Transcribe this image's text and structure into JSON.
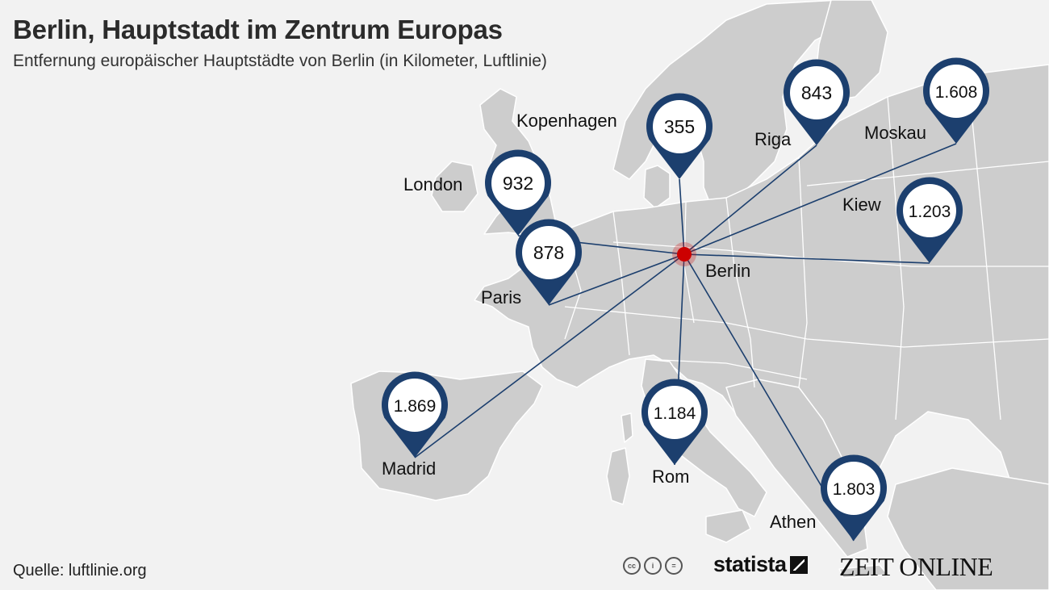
{
  "header": {
    "title": "Berlin, Hauptstadt im Zentrum Europas",
    "subtitle": "Entfernung europäischer Hauptstädte von Berlin (in Kilometer, Luftlinie)"
  },
  "hub": {
    "name": "Berlin",
    "color": "#cc0000"
  },
  "colors": {
    "pin": "#1c3f6e",
    "land": "#cdcdcd",
    "sea": "#f2f2f2",
    "border": "#ffffff",
    "line": "#1c3f6e"
  },
  "cities": [
    {
      "id": "kopenhagen",
      "name": "Kopenhagen",
      "distance_km": "355"
    },
    {
      "id": "riga",
      "name": "Riga",
      "distance_km": "843"
    },
    {
      "id": "moskau",
      "name": "Moskau",
      "distance_km": "1.608"
    },
    {
      "id": "london",
      "name": "London",
      "distance_km": "932"
    },
    {
      "id": "kiew",
      "name": "Kiew",
      "distance_km": "1.203"
    },
    {
      "id": "paris",
      "name": "Paris",
      "distance_km": "878"
    },
    {
      "id": "madrid",
      "name": "Madrid",
      "distance_km": "1.869"
    },
    {
      "id": "rom",
      "name": "Rom",
      "distance_km": "1.184"
    },
    {
      "id": "athen",
      "name": "Athen",
      "distance_km": "1.803"
    }
  ],
  "footer": {
    "source": "Quelle: luftlinie.org",
    "license_icons": [
      "cc-icon",
      "by-icon",
      "nd-icon"
    ],
    "license_glyphs": [
      "cc",
      "i",
      "="
    ],
    "statista_logo": "statista",
    "zeit_logo": "ZEIT ONLINE"
  }
}
